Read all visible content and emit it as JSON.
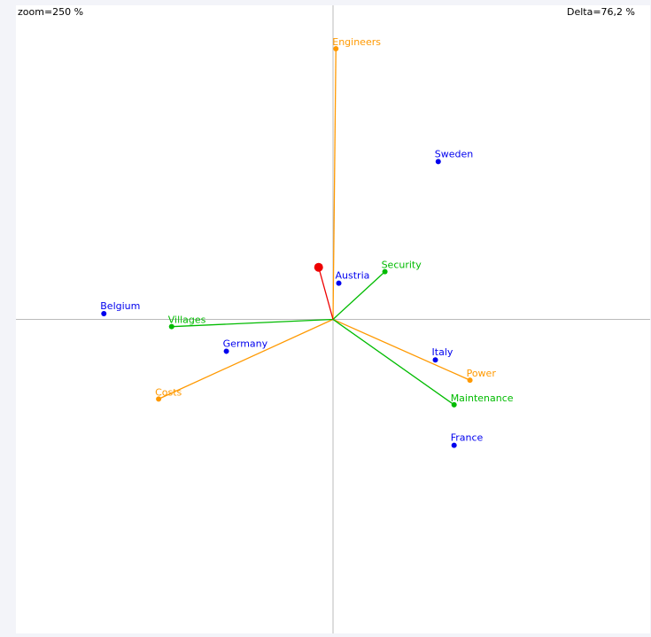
{
  "zoom_text": "zoom=250 %",
  "delta_text": "Delta=76,2 %",
  "colors": {
    "observation": "#0000ee",
    "active_variable": "#ff9900",
    "supplementary_variable": "#00bb00",
    "active_point": "#ee0000",
    "axis": "#bbbbbb"
  },
  "chart_data": {
    "type": "scatter",
    "title": "",
    "xlabel": "",
    "ylabel": "",
    "xlim": [
      -2.2,
      2.2
    ],
    "ylim": [
      -2.17,
      2.17
    ],
    "observations": [
      {
        "label": "Sweden",
        "x": 0.73,
        "y": 1.09
      },
      {
        "label": "Austria",
        "x": 0.04,
        "y": 0.25
      },
      {
        "label": "Belgium",
        "x": -1.59,
        "y": 0.04
      },
      {
        "label": "Germany",
        "x": -0.74,
        "y": -0.22
      },
      {
        "label": "Italy",
        "x": 0.71,
        "y": -0.28
      },
      {
        "label": "France",
        "x": 0.84,
        "y": -0.87
      }
    ],
    "active_variables": [
      {
        "label": "Engineers",
        "x": 0.02,
        "y": 1.87
      },
      {
        "label": "Power",
        "x": 0.95,
        "y": -0.42
      },
      {
        "label": "Costs",
        "x": -1.21,
        "y": -0.55
      }
    ],
    "supplementary_variables": [
      {
        "label": "Security",
        "x": 0.36,
        "y": 0.33
      },
      {
        "label": "Villages",
        "x": -1.12,
        "y": -0.05
      },
      {
        "label": "Maintenance",
        "x": 0.84,
        "y": -0.59
      }
    ],
    "active_point": {
      "x": -0.1,
      "y": 0.36
    }
  }
}
